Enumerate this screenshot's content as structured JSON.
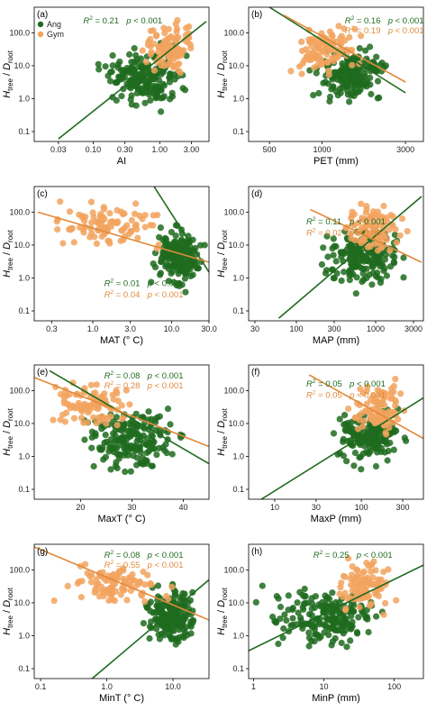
{
  "colors": {
    "ang": "#1f6b1f",
    "gym": "#f2a35e",
    "axis": "#000000"
  },
  "y_label": {
    "main": "H",
    "sub1": "tree",
    "sep": " / ",
    "main2": "D",
    "sub2": "root"
  },
  "y_ticks": [
    {
      "value": 0.1,
      "label": "0.1"
    },
    {
      "value": 1,
      "label": "1.0"
    },
    {
      "value": 10,
      "label": "10.0"
    },
    {
      "value": 100,
      "label": "100.0"
    }
  ],
  "legend": [
    {
      "name": "Ang",
      "color": "#1f6b1f"
    },
    {
      "name": "Gym",
      "color": "#f2a35e"
    }
  ],
  "chart_data": [
    {
      "type": "scatter",
      "panel": "(a)",
      "xlabel": "AI",
      "ylabel": "Htree / Droot",
      "xscale": "log",
      "xlim": [
        0.013,
        5.5
      ],
      "yscale": "log",
      "ylim": [
        0.05,
        600
      ],
      "xticks": [
        {
          "value": 0.03,
          "label": "0.03"
        },
        {
          "value": 0.1,
          "label": "0.10"
        },
        {
          "value": 0.3,
          "label": "0.30"
        },
        {
          "value": 1,
          "label": "1.00"
        },
        {
          "value": 3,
          "label": "3.00"
        }
      ],
      "legend_position": "top-left",
      "stats": [
        {
          "series": "Ang",
          "r2": "0.21",
          "p": "p < 0.001"
        }
      ],
      "fit_lines": [
        {
          "series": "Ang",
          "x": [
            0.03,
            5.0
          ],
          "y": [
            0.06,
            220
          ]
        }
      ],
      "clusters": [
        {
          "series": "Ang",
          "x_range": [
            0.1,
            3.2
          ],
          "y_range": [
            0.3,
            60
          ],
          "count": 190
        },
        {
          "series": "Gym",
          "x_range": [
            0.5,
            4.0
          ],
          "y_range": [
            3,
            400
          ],
          "count": 95
        }
      ]
    },
    {
      "type": "scatter",
      "panel": "(b)",
      "xlabel": "PET (mm)",
      "ylabel": "Htree / Droot",
      "xscale": "log",
      "xlim": [
        380,
        3800
      ],
      "yscale": "log",
      "ylim": [
        0.05,
        600
      ],
      "xticks": [
        {
          "value": 500,
          "label": "500"
        },
        {
          "value": 1000,
          "label": "1000"
        },
        {
          "value": 3000,
          "label": "3000"
        }
      ],
      "stats": [
        {
          "series": "Ang",
          "r2": "0.16",
          "p": "p < 0.001"
        },
        {
          "series": "Gym",
          "r2": "0.19",
          "p": "p < 0.001"
        }
      ],
      "fit_lines": [
        {
          "series": "Ang",
          "x": [
            500,
            3000
          ],
          "y": [
            600,
            1.5
          ]
        },
        {
          "series": "Gym",
          "x": [
            600,
            3000
          ],
          "y": [
            350,
            3.2
          ]
        }
      ],
      "clusters": [
        {
          "series": "Ang",
          "x_range": [
            800,
            2600
          ],
          "y_range": [
            0.6,
            60
          ],
          "count": 190
        },
        {
          "series": "Gym",
          "x_range": [
            600,
            1800
          ],
          "y_range": [
            3,
            300
          ],
          "count": 95
        }
      ]
    },
    {
      "type": "scatter",
      "panel": "(c)",
      "xlabel": "MAT (° C)",
      "ylabel": "Htree / Droot",
      "xscale": "log",
      "xlim": [
        0.18,
        30
      ],
      "yscale": "log",
      "ylim": [
        0.05,
        600
      ],
      "xticks": [
        {
          "value": 0.3,
          "label": "0.3"
        },
        {
          "value": 1,
          "label": "1.0"
        },
        {
          "value": 3,
          "label": "3.0"
        },
        {
          "value": 10,
          "label": "10.0"
        },
        {
          "value": 30,
          "label": "30.0"
        }
      ],
      "stats": [
        {
          "series": "Ang",
          "r2": "0.01",
          "p": "p < 0.05"
        },
        {
          "series": "Gym",
          "r2": "0.04",
          "p": "p < 0.001"
        }
      ],
      "fit_lines": [
        {
          "series": "Ang",
          "x": [
            6,
            30
          ],
          "y": [
            600,
            1.5
          ]
        },
        {
          "series": "Gym",
          "x": [
            0.2,
            30
          ],
          "y": [
            100,
            3
          ]
        }
      ],
      "clusters": [
        {
          "series": "Ang",
          "x_range": [
            5,
            30
          ],
          "y_range": [
            0.3,
            60
          ],
          "count": 190
        },
        {
          "series": "Gym",
          "x_range": [
            0.2,
            15
          ],
          "y_range": [
            5,
            300
          ],
          "count": 95
        }
      ]
    },
    {
      "type": "scatter",
      "panel": "(d)",
      "xlabel": "MAP (mm)",
      "ylabel": "Htree / Droot",
      "xscale": "log",
      "xlim": [
        25,
        4000
      ],
      "yscale": "log",
      "ylim": [
        0.05,
        600
      ],
      "xticks": [
        {
          "value": 30,
          "label": "30"
        },
        {
          "value": 100,
          "label": "100"
        },
        {
          "value": 300,
          "label": "300"
        },
        {
          "value": 1000,
          "label": "1000"
        },
        {
          "value": 3000,
          "label": "3000"
        }
      ],
      "stats": [
        {
          "series": "Ang",
          "r2": "0.11",
          "p": "p < 0.001"
        },
        {
          "series": "Gym",
          "r2": "0.02",
          "p": "p < 0.05"
        }
      ],
      "fit_lines": [
        {
          "series": "Ang",
          "x": [
            60,
            3800
          ],
          "y": [
            0.06,
            300
          ]
        },
        {
          "series": "Gym",
          "x": [
            150,
            3800
          ],
          "y": [
            120,
            3
          ]
        }
      ],
      "clusters": [
        {
          "series": "Ang",
          "x_range": [
            150,
            3000
          ],
          "y_range": [
            0.3,
            60
          ],
          "count": 190
        },
        {
          "series": "Gym",
          "x_range": [
            300,
            3000
          ],
          "y_range": [
            3,
            300
          ],
          "count": 95
        }
      ]
    },
    {
      "type": "scatter",
      "panel": "(e)",
      "xlabel": "MaxT (° C)",
      "ylabel": "Htree / Droot",
      "xscale": "linear",
      "xlim": [
        11,
        45
      ],
      "yscale": "log",
      "ylim": [
        0.05,
        600
      ],
      "xticks": [
        {
          "value": 20,
          "label": "20"
        },
        {
          "value": 30,
          "label": "30"
        },
        {
          "value": 40,
          "label": "40"
        }
      ],
      "stats": [
        {
          "series": "Ang",
          "r2": "0.08",
          "p": "p < 0.001"
        },
        {
          "series": "Gym",
          "r2": "0.28",
          "p": "p < 0.001"
        }
      ],
      "fit_lines": [
        {
          "series": "Ang",
          "x": [
            14,
            45
          ],
          "y": [
            400,
            0.6
          ]
        },
        {
          "series": "Gym",
          "x": [
            11,
            45
          ],
          "y": [
            250,
            2
          ]
        }
      ],
      "clusters": [
        {
          "series": "Ang",
          "x_range": [
            18,
            42
          ],
          "y_range": [
            0.2,
            60
          ],
          "count": 190
        },
        {
          "series": "Gym",
          "x_range": [
            12,
            32
          ],
          "y_range": [
            5,
            300
          ],
          "count": 95
        }
      ]
    },
    {
      "type": "scatter",
      "panel": "(f)",
      "xlabel": "MaxP (mm)",
      "ylabel": "Htree / Droot",
      "xscale": "log",
      "xlim": [
        5,
        520
      ],
      "yscale": "log",
      "ylim": [
        0.05,
        600
      ],
      "xticks": [
        {
          "value": 10,
          "label": "10"
        },
        {
          "value": 30,
          "label": "30"
        },
        {
          "value": 100,
          "label": "100"
        },
        {
          "value": 300,
          "label": "300"
        }
      ],
      "stats": [
        {
          "series": "Ang",
          "r2": "0.05",
          "p": "p < 0.001"
        },
        {
          "series": "Gym",
          "r2": "0.05",
          "p": "p < 0.001"
        }
      ],
      "fit_lines": [
        {
          "series": "Ang",
          "x": [
            7,
            520
          ],
          "y": [
            0.05,
            60
          ]
        },
        {
          "series": "Gym",
          "x": [
            25,
            520
          ],
          "y": [
            300,
            3.5
          ]
        }
      ],
      "clusters": [
        {
          "series": "Ang",
          "x_range": [
            40,
            400
          ],
          "y_range": [
            0.3,
            60
          ],
          "count": 190
        },
        {
          "series": "Gym",
          "x_range": [
            60,
            400
          ],
          "y_range": [
            3,
            300
          ],
          "count": 95
        }
      ]
    },
    {
      "type": "scatter",
      "panel": "(g)",
      "xlabel": "MinT (° C)",
      "ylabel": "Htree / Droot",
      "xscale": "log",
      "xlim": [
        0.08,
        35
      ],
      "yscale": "log",
      "ylim": [
        0.05,
        600
      ],
      "xticks": [
        {
          "value": 0.1,
          "label": "0.1"
        },
        {
          "value": 1,
          "label": "1.0"
        },
        {
          "value": 10,
          "label": "10.0"
        }
      ],
      "stats": [
        {
          "series": "Ang",
          "r2": "0.08",
          "p": "p < 0.001"
        },
        {
          "series": "Gym",
          "r2": "0.55",
          "p": "p < 0.001"
        }
      ],
      "fit_lines": [
        {
          "series": "Ang",
          "x": [
            0.6,
            35
          ],
          "y": [
            0.05,
            50
          ]
        },
        {
          "series": "Gym",
          "x": [
            0.08,
            35
          ],
          "y": [
            500,
            3
          ]
        }
      ],
      "clusters": [
        {
          "series": "Ang",
          "x_range": [
            3,
            30
          ],
          "y_range": [
            0.3,
            60
          ],
          "count": 190
        },
        {
          "series": "Gym",
          "x_range": [
            0.1,
            15
          ],
          "y_range": [
            5,
            300
          ],
          "count": 95
        }
      ]
    },
    {
      "type": "scatter",
      "panel": "(h)",
      "xlabel": "MinP (mm)",
      "ylabel": "Htree / Droot",
      "xscale": "log",
      "xlim": [
        0.85,
        260
      ],
      "yscale": "log",
      "ylim": [
        0.05,
        600
      ],
      "xticks": [
        {
          "value": 1,
          "label": "1"
        },
        {
          "value": 10,
          "label": "10"
        },
        {
          "value": 100,
          "label": "100"
        }
      ],
      "stats": [
        {
          "series": "Ang",
          "r2": "0.25",
          "p": "p < 0.001"
        }
      ],
      "fit_lines": [
        {
          "series": "Ang",
          "x": [
            0.85,
            260
          ],
          "y": [
            0.35,
            140
          ]
        }
      ],
      "clusters": [
        {
          "series": "Ang",
          "x_range": [
            1,
            150
          ],
          "y_range": [
            0.2,
            60
          ],
          "count": 190
        },
        {
          "series": "Gym",
          "x_range": [
            10,
            150
          ],
          "y_range": [
            3,
            300
          ],
          "count": 95
        }
      ]
    }
  ]
}
